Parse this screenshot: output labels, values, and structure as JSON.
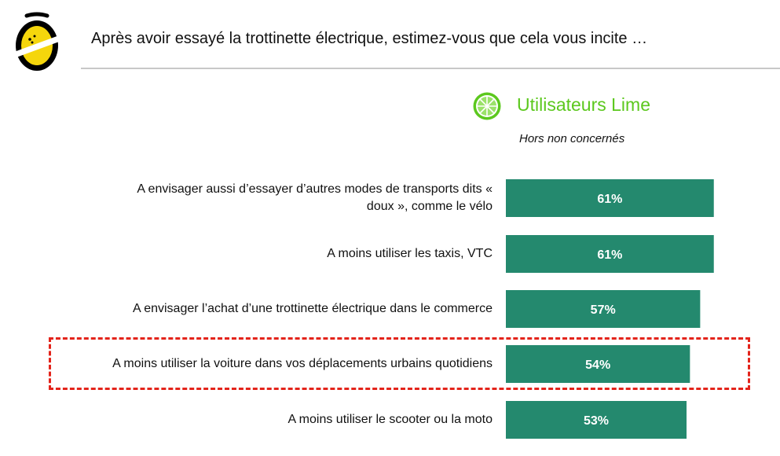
{
  "header": {
    "title": "Après avoir essayé la trottinette électrique, estimez-vous que cela vous incite …"
  },
  "legend": {
    "series_name": "Utilisateurs Lime",
    "note": "Hors non concernés",
    "series_color": "#5cc81e"
  },
  "colors": {
    "bar": "#24896e",
    "bar_text": "#ffffff",
    "highlight": "#e3241b"
  },
  "chart_data": {
    "type": "bar",
    "orientation": "horizontal",
    "categories": [
      "A envisager aussi d’essayer d’autres modes de transports dits « doux », comme le vélo",
      "A moins utiliser les taxis, VTC",
      "A envisager l’achat d’une trottinette électrique dans le commerce",
      "A moins utiliser la voiture dans vos déplacements urbains quotidiens",
      "A moins utiliser le scooter ou la moto"
    ],
    "category_lines": [
      [
        "A envisager aussi d’essayer d’autres modes de transports dits «",
        "doux », comme le vélo"
      ],
      [
        "A moins utiliser les taxis, VTC"
      ],
      [
        "A envisager l’achat d’une trottinette électrique dans le commerce"
      ],
      [
        "A moins utiliser la voiture dans vos déplacements urbains quotidiens"
      ],
      [
        "A moins utiliser le scooter ou la moto"
      ]
    ],
    "series": [
      {
        "name": "Utilisateurs Lime",
        "values": [
          61,
          61,
          57,
          54,
          53
        ],
        "labels": [
          "61%",
          "61%",
          "57%",
          "54%",
          "53%"
        ]
      }
    ],
    "unit": "%",
    "highlighted_index": 3
  }
}
